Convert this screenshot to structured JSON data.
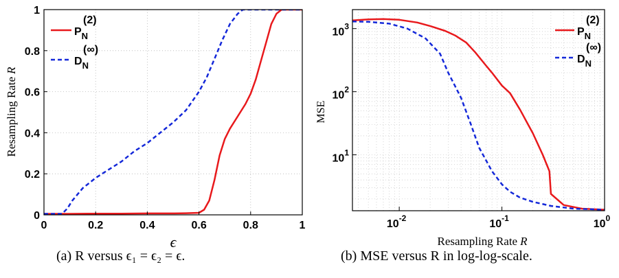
{
  "chart_data": [
    {
      "type": "line",
      "panel": "a",
      "xlabel": "ε",
      "ylabel": "Resampling Rate R",
      "xlim": [
        0,
        1
      ],
      "ylim": [
        0,
        1
      ],
      "x_ticks": [
        "0",
        "0.2",
        "0.4",
        "0.6",
        "0.8",
        "1"
      ],
      "y_ticks": [
        "0",
        "0.2",
        "0.4",
        "0.6",
        "0.8",
        "1"
      ],
      "grid": true,
      "legend_position": "top-left",
      "series": [
        {
          "name": "P_N^(2)",
          "color": "#e8191c",
          "style": "solid",
          "x": [
            0,
            0.1,
            0.2,
            0.3,
            0.4,
            0.5,
            0.55,
            0.6,
            0.62,
            0.64,
            0.66,
            0.68,
            0.7,
            0.72,
            0.75,
            0.78,
            0.8,
            0.82,
            0.84,
            0.86,
            0.88,
            0.9,
            0.92,
            1.0
          ],
          "y": [
            0.005,
            0.005,
            0.006,
            0.006,
            0.007,
            0.007,
            0.008,
            0.01,
            0.025,
            0.07,
            0.17,
            0.29,
            0.37,
            0.42,
            0.48,
            0.54,
            0.59,
            0.66,
            0.75,
            0.84,
            0.93,
            0.98,
            1.0,
            1.0
          ]
        },
        {
          "name": "D_N^(∞)",
          "color": "#1428d9",
          "style": "dashed",
          "x": [
            0,
            0.07,
            0.09,
            0.11,
            0.13,
            0.15,
            0.18,
            0.2,
            0.25,
            0.3,
            0.35,
            0.4,
            0.45,
            0.5,
            0.55,
            0.6,
            0.63,
            0.66,
            0.69,
            0.72,
            0.75,
            0.77,
            1.0
          ],
          "y": [
            0.005,
            0.005,
            0.03,
            0.07,
            0.1,
            0.13,
            0.16,
            0.18,
            0.22,
            0.26,
            0.31,
            0.35,
            0.4,
            0.45,
            0.51,
            0.6,
            0.67,
            0.76,
            0.85,
            0.93,
            0.98,
            1.0,
            1.0
          ]
        }
      ]
    },
    {
      "type": "line",
      "panel": "b",
      "xlabel": "Resampling Rate R",
      "ylabel": "MSE",
      "x_scale": "log",
      "y_scale": "log",
      "xlim": [
        0.0035,
        1
      ],
      "ylim": [
        1.3,
        2000
      ],
      "x_ticks": [
        "10^-2",
        "10^-1",
        "10^0"
      ],
      "y_ticks": [
        "10^1",
        "10^2",
        "10^3"
      ],
      "grid": true,
      "legend_position": "top-right",
      "series": [
        {
          "name": "P_N^(2)",
          "color": "#e8191c",
          "style": "solid",
          "x": [
            0.0035,
            0.005,
            0.007,
            0.01,
            0.015,
            0.02,
            0.028,
            0.035,
            0.045,
            0.055,
            0.07,
            0.08,
            0.1,
            0.12,
            0.15,
            0.2,
            0.25,
            0.29,
            0.3,
            0.4,
            0.6,
            1.0
          ],
          "y": [
            1350,
            1400,
            1420,
            1380,
            1250,
            1100,
            920,
            780,
            600,
            420,
            260,
            200,
            125,
            95,
            52,
            22,
            10,
            5.5,
            2.4,
            1.6,
            1.4,
            1.35
          ]
        },
        {
          "name": "D_N^(∞)",
          "color": "#1428d9",
          "style": "dashed",
          "x": [
            0.0035,
            0.005,
            0.008,
            0.012,
            0.018,
            0.025,
            0.03,
            0.04,
            0.05,
            0.06,
            0.08,
            0.1,
            0.12,
            0.15,
            0.2,
            0.3,
            0.5,
            1.0
          ],
          "y": [
            1300,
            1280,
            1200,
            1000,
            700,
            400,
            200,
            80,
            30,
            13,
            5.5,
            3.4,
            2.6,
            2.1,
            1.8,
            1.55,
            1.4,
            1.35
          ]
        }
      ]
    }
  ],
  "captions": {
    "a": "(a)  R versus ϵ₁ = ϵ₂ = ϵ.",
    "b": "(b)  MSE versus R in log-log-scale."
  },
  "legend": {
    "p_letter": "P",
    "p_sup": "(2)",
    "d_letter": "D",
    "d_sup": "(∞)",
    "sub": "N"
  },
  "axis_text": {
    "a_xlabel": "ϵ",
    "a_ylabel": "Resampling Rate",
    "a_ylabel_var": "R",
    "b_xlabel": "Resampling Rate",
    "b_xlabel_var": "R",
    "b_ylabel": "MSE",
    "ten": "10",
    "b_xexp": [
      "-2",
      "-1",
      "0"
    ],
    "b_yexp": [
      "1",
      "2",
      "3"
    ]
  }
}
